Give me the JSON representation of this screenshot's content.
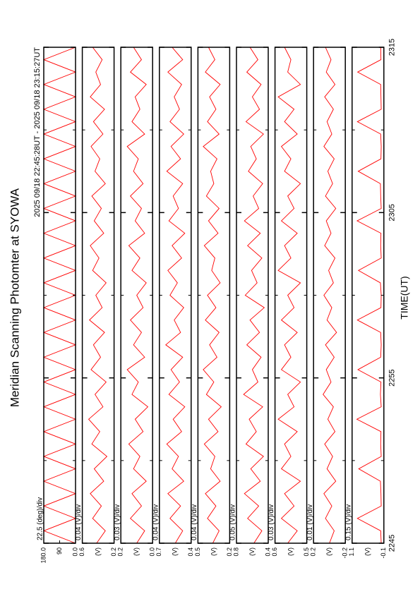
{
  "chart_data": {
    "type": "line",
    "title": "Meridian Scanning Photomter at SYOWA",
    "subtitle": "2025 09/18 22:45:28UT - 2025 09/18 23:15:27UT",
    "xlabel": "TIME(UT)",
    "xlim": [
      0,
      30
    ],
    "xticks": [
      {
        "value": 0,
        "label": "2245"
      },
      {
        "value": 10,
        "label": "2255"
      },
      {
        "value": 20,
        "label": "2305"
      },
      {
        "value": 30,
        "label": "2315"
      }
    ],
    "minor_xticks": [
      5,
      15,
      25
    ],
    "x": [
      0,
      0.75,
      1.5,
      2.25,
      3,
      3.75,
      4.5,
      5.25,
      6,
      6.75,
      7.5,
      8.25,
      9,
      9.75,
      10.5,
      11.25,
      12,
      12.75,
      13.5,
      14.25,
      15,
      15.75,
      16.5,
      17.25,
      18,
      18.75,
      19.5,
      20.25,
      21,
      21.75,
      22.5,
      23.25,
      24,
      24.75,
      25.5,
      26.25,
      27,
      27.75,
      28.5,
      29.25,
      30
    ],
    "panels": [
      {
        "scale_label": "22.5 (deg)/div",
        "color": "#ff0000",
        "ylim": [
          0,
          180
        ],
        "yticks": [
          {
            "value": 0,
            "label": "0.0"
          },
          90,
          {
            "value": 180,
            "label": "180.0"
          }
        ],
        "values": [
          0,
          180,
          0,
          180,
          0,
          180,
          0,
          180,
          0,
          180,
          0,
          180,
          0,
          180,
          0,
          180,
          0,
          180,
          0,
          180,
          0,
          180,
          0,
          180,
          0,
          180,
          0,
          180,
          0,
          180,
          0,
          180,
          0,
          180,
          0,
          180,
          0,
          180,
          0,
          180,
          0
        ]
      },
      {
        "scale_label": "0.04 (V)/div",
        "unit": "(V)",
        "color": "#ff0000",
        "ylim": [
          0.2,
          0.6
        ],
        "yticks": [
          0.2,
          0.6
        ],
        "values": [
          0.42,
          0.31,
          0.47,
          0.36,
          0.5,
          0.33,
          0.45,
          0.29,
          0.48,
          0.38,
          0.52,
          0.34,
          0.44,
          0.3,
          0.49,
          0.37,
          0.46,
          0.32,
          0.51,
          0.35,
          0.43,
          0.3,
          0.47,
          0.39,
          0.5,
          0.33,
          0.45,
          0.36,
          0.48,
          0.31,
          0.44,
          0.38,
          0.49,
          0.34,
          0.46,
          0.32,
          0.5,
          0.37,
          0.43,
          0.35,
          0.47
        ]
      },
      {
        "scale_label": "0.03 (V)/div",
        "unit": "(V)",
        "color": "#ff0000",
        "ylim": [
          0.0,
          0.2
        ],
        "yticks": [
          {
            "value": 0,
            "label": "0.0"
          },
          0.2
        ],
        "values": [
          0.1,
          0.05,
          0.14,
          0.07,
          0.13,
          0.04,
          0.12,
          0.08,
          0.15,
          0.06,
          0.11,
          0.03,
          0.13,
          0.09,
          0.16,
          0.05,
          0.12,
          0.07,
          0.14,
          0.06,
          0.1,
          0.04,
          0.13,
          0.08,
          0.15,
          0.05,
          0.11,
          0.07,
          0.14,
          0.06,
          0.12,
          0.09,
          0.16,
          0.05,
          0.13,
          0.08,
          0.11,
          0.04,
          0.14,
          0.07,
          0.12
        ]
      },
      {
        "scale_label": "0.04 (V)/div",
        "unit": "(V)",
        "color": "#ff0000",
        "ylim": [
          0.4,
          0.7
        ],
        "yticks": [
          0.4,
          0.7
        ],
        "values": [
          0.55,
          0.48,
          0.6,
          0.5,
          0.62,
          0.47,
          0.58,
          0.52,
          0.63,
          0.49,
          0.57,
          0.46,
          0.61,
          0.51,
          0.59,
          0.48,
          0.64,
          0.5,
          0.56,
          0.47,
          0.6,
          0.53,
          0.62,
          0.49,
          0.58,
          0.46,
          0.61,
          0.52,
          0.57,
          0.48,
          0.63,
          0.5,
          0.59,
          0.47,
          0.6,
          0.51,
          0.56,
          0.49,
          0.62,
          0.48,
          0.58
        ]
      },
      {
        "scale_label": "0.04 (V)/div",
        "unit": "(V)",
        "color": "#ff0000",
        "ylim": [
          0.2,
          0.5
        ],
        "yticks": [
          0.2,
          0.5
        ],
        "values": [
          0.36,
          0.3,
          0.41,
          0.33,
          0.43,
          0.29,
          0.38,
          0.34,
          0.44,
          0.31,
          0.4,
          0.28,
          0.42,
          0.35,
          0.45,
          0.32,
          0.39,
          0.3,
          0.43,
          0.33,
          0.41,
          0.29,
          0.37,
          0.34,
          0.44,
          0.31,
          0.4,
          0.3,
          0.42,
          0.35,
          0.38,
          0.32,
          0.45,
          0.3,
          0.41,
          0.33,
          0.39,
          0.29,
          0.43,
          0.34,
          0.4
        ]
      },
      {
        "scale_label": "0.05 (V)/div",
        "unit": "(V)",
        "color": "#ff0000",
        "ylim": [
          0.4,
          0.8
        ],
        "yticks": [
          0.4,
          0.8
        ],
        "values": [
          0.58,
          0.48,
          0.66,
          0.52,
          0.7,
          0.5,
          0.62,
          0.46,
          0.68,
          0.55,
          0.64,
          0.47,
          0.71,
          0.53,
          0.6,
          0.49,
          0.67,
          0.51,
          0.63,
          0.45,
          0.69,
          0.54,
          0.61,
          0.48,
          0.66,
          0.5,
          0.7,
          0.52,
          0.59,
          0.47,
          0.65,
          0.55,
          0.62,
          0.46,
          0.68,
          0.51,
          0.6,
          0.49,
          0.67,
          0.53,
          0.63
        ]
      },
      {
        "scale_label": "0.03 (V)/div",
        "unit": "(V)",
        "color": "#ff0000",
        "ylim": [
          0.5,
          0.6
        ],
        "yticks": [
          0.5,
          0.6
        ],
        "values": [
          0.56,
          0.53,
          0.58,
          0.54,
          0.57,
          0.52,
          0.58,
          0.55,
          0.57,
          0.53,
          0.59,
          0.54,
          0.56,
          0.52,
          0.58,
          0.55,
          0.57,
          0.53,
          0.58,
          0.54,
          0.56,
          0.52,
          0.59,
          0.55,
          0.57,
          0.53,
          0.58,
          0.54,
          0.56,
          0.52,
          0.57,
          0.55,
          0.58,
          0.53,
          0.57,
          0.54,
          0.59,
          0.52,
          0.56,
          0.55,
          0.57
        ]
      },
      {
        "scale_label": "0.01 (V)/div",
        "unit": "(V)",
        "color": "#ff0000",
        "ylim": [
          -0.2,
          0.2
        ],
        "yticks": [
          -0.2,
          0.2
        ],
        "values": [
          0.0,
          -0.06,
          0.05,
          -0.03,
          0.07,
          -0.08,
          0.03,
          -0.04,
          0.06,
          -0.07,
          0.02,
          -0.05,
          0.08,
          -0.02,
          0.04,
          -0.06,
          0.05,
          -0.09,
          0.03,
          -0.03,
          0.07,
          -0.05,
          0.01,
          -0.07,
          0.06,
          -0.02,
          0.04,
          -0.08,
          0.05,
          -0.04,
          0.02,
          -0.06,
          0.07,
          -0.03,
          0.03,
          -0.05,
          0.06,
          -0.07,
          0.04,
          -0.02,
          0.05
        ]
      },
      {
        "scale_label": "0.15 (V)/div",
        "unit": "(V)",
        "color": "#ff0000",
        "ylim": [
          -0.1,
          1.1
        ],
        "yticks": [
          -0.1,
          1.1
        ],
        "values": [
          0,
          0.02,
          0.9,
          0,
          0.01,
          0.03,
          0.85,
          0,
          0.02,
          0.01,
          0.92,
          0,
          0.03,
          0.01,
          0.88,
          0.02,
          0,
          0.02,
          0.9,
          0.01,
          0,
          0.03,
          0.86,
          0,
          0.02,
          0.01,
          0.91,
          0,
          0.02,
          0.03,
          0.87,
          0.01,
          0,
          0.02,
          0.9,
          0,
          0.01,
          0.02,
          0.89,
          0.01,
          0.02
        ]
      }
    ]
  }
}
